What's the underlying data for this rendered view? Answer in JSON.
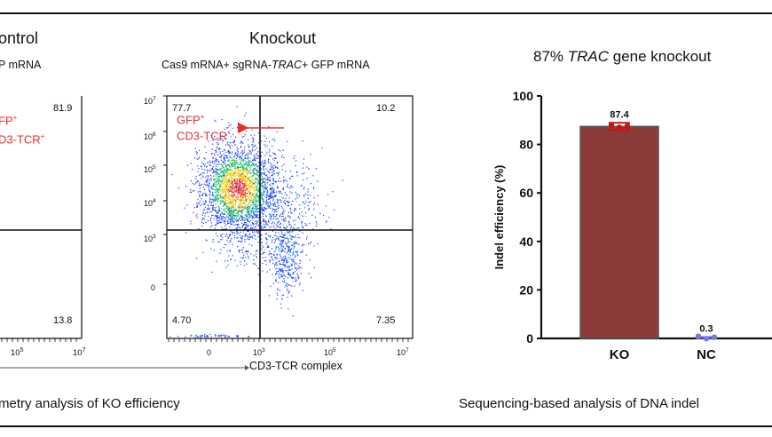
{
  "left_panel": {
    "control_title": "ontrol",
    "control_subtitle": "P mRNA",
    "control_q_upper_right": "81.9",
    "control_q_lower_right": "13.8",
    "control_gfp_label": "FP",
    "control_cd3_label": "D3-TCR",
    "knockout_title": "Knockout",
    "knockout_subtitle_pre": "Cas9 mRNA+ sgRNA-",
    "knockout_subtitle_gene": "TRAC",
    "knockout_subtitle_post": "+ GFP mRNA",
    "knockout_q_upper_left": "77.7",
    "knockout_q_upper_right": "10.2",
    "knockout_q_lower_left": "4.70",
    "knockout_q_lower_right": "7.35",
    "gfp_label": "GFP",
    "cd3_label": "CD3-TCR",
    "x_axis_label": "CD3-TCR complex",
    "caption": "metry analysis of KO efficiency",
    "colors": {
      "red": "#e8302a",
      "density_low": "#1a3cff",
      "density_mid": "#22c25a",
      "density_high": "#ff3b1f"
    }
  },
  "chart_data": {
    "type": "bar",
    "title_pre": "87% ",
    "title_gene": "TRAC",
    "title_post": " gene knockout",
    "categories": [
      "KO",
      "NC"
    ],
    "values": [
      87.4,
      0.3
    ],
    "value_labels": [
      "87.4",
      "0.3"
    ],
    "error": [
      1.5,
      0.2
    ],
    "ylabel": "Indel efficiency (%)",
    "ylim": [
      0,
      100
    ],
    "yticks": [
      0,
      20,
      40,
      60,
      80,
      100
    ],
    "grid": false,
    "colors": {
      "KO": "#8b3a3a",
      "KO_points": "#cc1111",
      "NC_points": "#7a7adb"
    }
  },
  "right_caption": "Sequencing-based analysis of DNA indel"
}
